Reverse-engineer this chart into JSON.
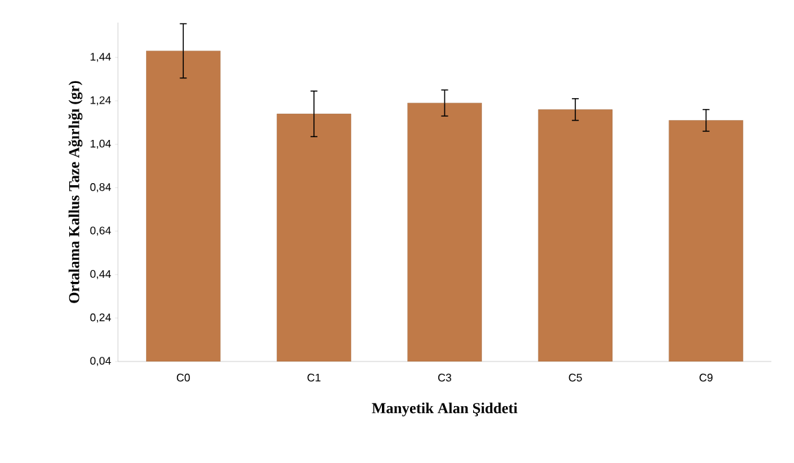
{
  "chart_data": {
    "type": "bar",
    "xlabel": "Manyetik Alan Şiddeti",
    "ylabel": "Ortalama Kallus Taze Ağırlığı (gr)",
    "categories": [
      "C0",
      "C1",
      "C3",
      "C5",
      "C9"
    ],
    "values": [
      1.47,
      1.18,
      1.23,
      1.2,
      1.15
    ],
    "errors": [
      0.125,
      0.105,
      0.06,
      0.05,
      0.05
    ],
    "color": "#c07a48",
    "ylim": [
      0.04,
      1.6
    ],
    "yticks": [
      {
        "value": 0.04,
        "label": "0,04"
      },
      {
        "value": 0.24,
        "label": "0,24"
      },
      {
        "value": 0.44,
        "label": "0,44"
      },
      {
        "value": 0.64,
        "label": "0,64"
      },
      {
        "value": 0.84,
        "label": "0,84"
      },
      {
        "value": 1.04,
        "label": "1,04"
      },
      {
        "value": 1.24,
        "label": "1,24"
      },
      {
        "value": 1.44,
        "label": "1,44"
      }
    ],
    "grid": false
  }
}
